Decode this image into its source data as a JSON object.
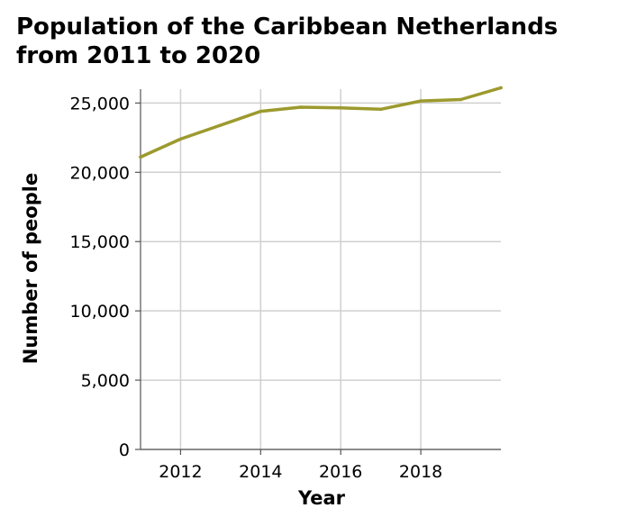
{
  "chart_data": {
    "type": "line",
    "title_lines": [
      "Population of the Caribbean Netherlands",
      "from 2011 to 2020"
    ],
    "xlabel": "Year",
    "ylabel": "Number of people",
    "x_ticks": [
      "2012",
      "2014",
      "2016",
      "2018"
    ],
    "x_tick_values": [
      2012,
      2014,
      2016,
      2018
    ],
    "y_ticks": [
      "0",
      "5,000",
      "10,000",
      "15,000",
      "20,000",
      "25,000"
    ],
    "y_tick_values": [
      0,
      5000,
      10000,
      15000,
      20000,
      25000
    ],
    "xlim": [
      2011,
      2020
    ],
    "ylim": [
      0,
      26000
    ],
    "grid": true,
    "line_color": "#9c9a2e",
    "grid_color": "#d0d0d0",
    "series": [
      {
        "x": [
          2011,
          2012,
          2013,
          2014,
          2015,
          2016,
          2017,
          2018,
          2019,
          2020
        ],
        "values": [
          21100,
          22400,
          23400,
          24400,
          24700,
          24650,
          24550,
          25150,
          25250,
          26100
        ]
      }
    ]
  }
}
